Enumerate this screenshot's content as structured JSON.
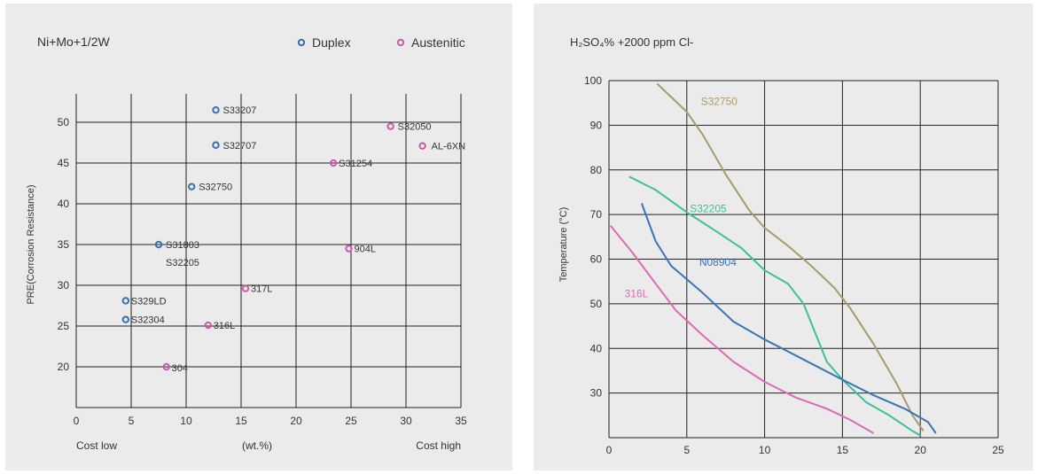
{
  "chart_data": [
    {
      "type": "scatter",
      "title": "Ni+Mo+1/2W",
      "xlabel": "(wt.%)",
      "ylabel": "PRE(Corrosion Resistance)",
      "x_low_label": "Cost low",
      "x_high_label": "Cost high",
      "xlim": [
        0,
        35
      ],
      "ylim": [
        15,
        55
      ],
      "xticks": [
        0,
        5,
        10,
        15,
        20,
        25,
        30,
        35
      ],
      "yticks": [
        20,
        25,
        30,
        35,
        40,
        45,
        50
      ],
      "grid": true,
      "legend_position": "top-right",
      "series": [
        {
          "name": "Duplex",
          "color": "#3a6fb0",
          "points": [
            {
              "label": "S33207",
              "x": 12.7,
              "y": 51.5
            },
            {
              "label": "S32707",
              "x": 12.7,
              "y": 47.2
            },
            {
              "label": "S32750",
              "x": 10.5,
              "y": 42.1
            },
            {
              "label": "S31803",
              "x": 7.5,
              "y": 35.0
            },
            {
              "label": "S32205",
              "x": 7.5,
              "y": 35.0
            },
            {
              "label": "S329LD",
              "x": 4.5,
              "y": 28.1
            },
            {
              "label": "S32304",
              "x": 4.5,
              "y": 25.8
            }
          ]
        },
        {
          "name": "Austenitic",
          "color": "#cc5aa8",
          "points": [
            {
              "label": "S32050",
              "x": 28.6,
              "y": 49.5
            },
            {
              "label": "AL-6XN",
              "x": 31.5,
              "y": 47.1
            },
            {
              "label": "S31254",
              "x": 23.4,
              "y": 45.0
            },
            {
              "label": "904L",
              "x": 24.8,
              "y": 34.5
            },
            {
              "label": "317L",
              "x": 15.4,
              "y": 29.6
            },
            {
              "label": "316L",
              "x": 12.0,
              "y": 25.1
            },
            {
              "label": "304",
              "x": 8.2,
              "y": 20.0
            }
          ]
        }
      ]
    },
    {
      "type": "line",
      "title": "H₂SO₄% +2000 ppm Cl-",
      "xlabel": "",
      "ylabel": "Temperature (°C)",
      "xlim": [
        0,
        25
      ],
      "ylim": [
        20,
        100
      ],
      "xticks": [
        0,
        5,
        10,
        15,
        20,
        25
      ],
      "yticks": [
        30,
        40,
        50,
        60,
        70,
        80,
        90,
        100
      ],
      "grid": true,
      "series": [
        {
          "name": "S32750",
          "color": "#a79b6a",
          "points": [
            [
              3.1,
              99.3
            ],
            [
              5.0,
              93.0
            ],
            [
              6.0,
              88.0
            ],
            [
              7.5,
              79.0
            ],
            [
              9.0,
              71.0
            ],
            [
              10.0,
              67.0
            ],
            [
              11.5,
              63.0
            ],
            [
              13.0,
              58.5
            ],
            [
              14.5,
              53.5
            ],
            [
              15.5,
              49.0
            ],
            [
              17.0,
              41.0
            ],
            [
              18.5,
              32.0
            ],
            [
              19.5,
              25.0
            ],
            [
              20.2,
              21.5
            ]
          ]
        },
        {
          "name": "S32205",
          "color": "#3fbf9a",
          "points": [
            [
              1.3,
              78.5
            ],
            [
              3.0,
              75.5
            ],
            [
              5.0,
              70.5
            ],
            [
              7.0,
              66.0
            ],
            [
              8.5,
              62.5
            ],
            [
              10.0,
              57.5
            ],
            [
              11.5,
              54.5
            ],
            [
              12.5,
              50.0
            ],
            [
              14.0,
              37.0
            ],
            [
              15.0,
              33.0
            ],
            [
              16.5,
              28.0
            ],
            [
              18.0,
              25.0
            ],
            [
              19.5,
              21.5
            ],
            [
              20.0,
              20.5
            ]
          ]
        },
        {
          "name": "N08904",
          "color": "#3a74b6",
          "points": [
            [
              2.1,
              72.5
            ],
            [
              3.0,
              64.0
            ],
            [
              4.0,
              58.5
            ],
            [
              6.0,
              52.5
            ],
            [
              8.0,
              46.0
            ],
            [
              10.0,
              42.0
            ],
            [
              12.5,
              37.5
            ],
            [
              15.0,
              33.0
            ],
            [
              17.0,
              29.5
            ],
            [
              19.0,
              26.5
            ],
            [
              20.5,
              23.5
            ],
            [
              21.0,
              21.0
            ]
          ]
        },
        {
          "name": "316L",
          "color": "#dd6ab6",
          "points": [
            [
              0.1,
              67.5
            ],
            [
              1.5,
              61.5
            ],
            [
              3.0,
              54.5
            ],
            [
              4.3,
              48.5
            ],
            [
              6.0,
              43.0
            ],
            [
              8.0,
              37.0
            ],
            [
              10.0,
              32.5
            ],
            [
              12.0,
              29.0
            ],
            [
              14.0,
              26.5
            ],
            [
              15.5,
              24.0
            ],
            [
              17.0,
              21.0
            ]
          ]
        }
      ]
    }
  ]
}
